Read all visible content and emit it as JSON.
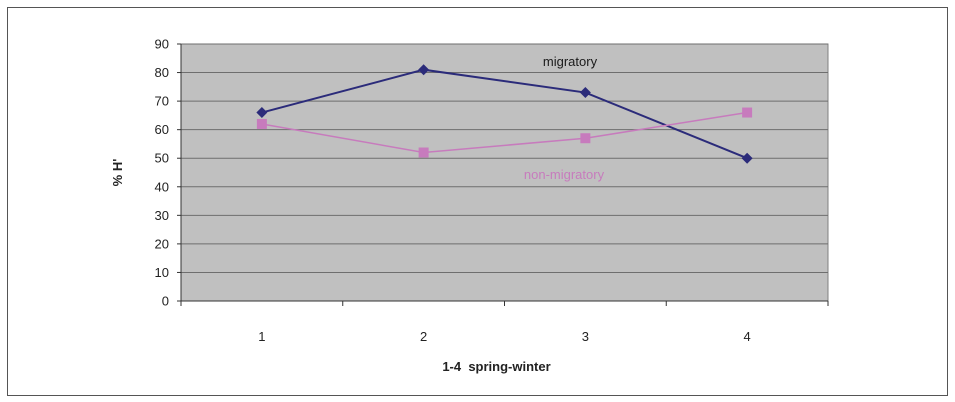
{
  "chart_data": {
    "type": "line",
    "title": "",
    "xlabel": "1-4  spring-winter",
    "ylabel": "% H'",
    "categories": [
      "1",
      "2",
      "3",
      "4"
    ],
    "ylim": [
      0,
      90
    ],
    "yticks": [
      "0",
      "10",
      "20",
      "30",
      "40",
      "50",
      "60",
      "70",
      "80",
      "90"
    ],
    "grid": true,
    "plot_background": "#c0c0c0",
    "series": [
      {
        "name": "migratory",
        "values": [
          66,
          81,
          73,
          50
        ],
        "color": "#2b2b7a",
        "marker": "diamond"
      },
      {
        "name": "non-migratory",
        "values": [
          62,
          52,
          57,
          66
        ],
        "color": "#c77bbd",
        "marker": "square"
      }
    ]
  }
}
